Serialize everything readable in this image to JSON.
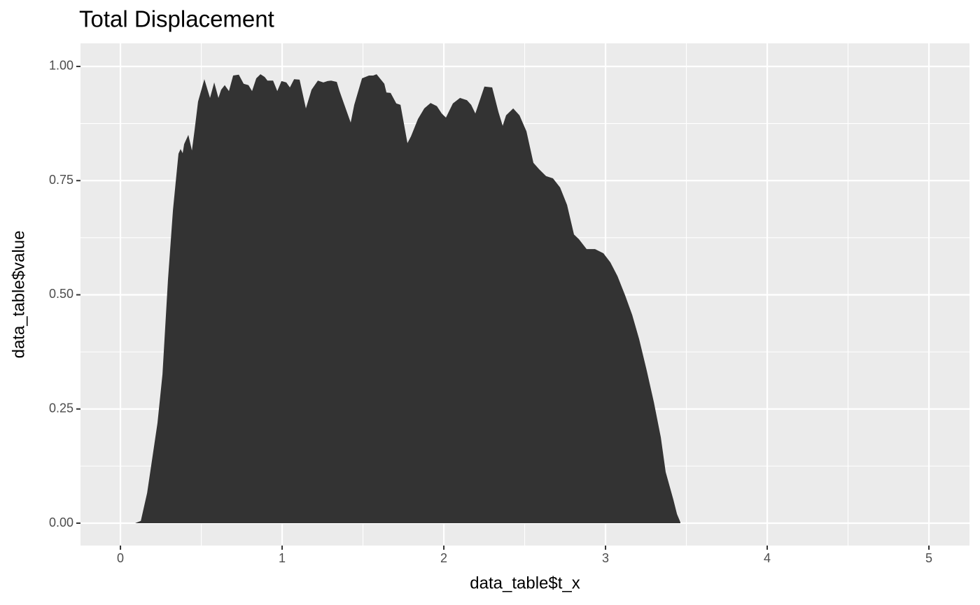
{
  "chart_data": {
    "type": "area",
    "title": "Total Displacement",
    "x_label": "data_table$t_x",
    "y_label": "data_table$value",
    "x": [
      0.091,
      0.126,
      0.165,
      0.229,
      0.26,
      0.294,
      0.325,
      0.359,
      0.372,
      0.385,
      0.394,
      0.42,
      0.442,
      0.459,
      0.48,
      0.519,
      0.554,
      0.58,
      0.606,
      0.623,
      0.645,
      0.671,
      0.697,
      0.732,
      0.762,
      0.792,
      0.814,
      0.84,
      0.866,
      0.892,
      0.909,
      0.944,
      0.97,
      0.996,
      1.026,
      1.048,
      1.074,
      1.108,
      1.147,
      1.182,
      1.221,
      1.255,
      1.281,
      1.303,
      1.338,
      1.355,
      1.385,
      1.424,
      1.446,
      1.494,
      1.537,
      1.563,
      1.584,
      1.632,
      1.645,
      1.671,
      1.706,
      1.732,
      1.775,
      1.797,
      1.84,
      1.879,
      1.918,
      1.957,
      1.987,
      2.013,
      2.056,
      2.1,
      2.143,
      2.169,
      2.195,
      2.251,
      2.299,
      2.338,
      2.364,
      2.385,
      2.429,
      2.468,
      2.511,
      2.554,
      2.589,
      2.632,
      2.675,
      2.719,
      2.762,
      2.805,
      2.835,
      2.883,
      2.935,
      2.987,
      3.03,
      3.074,
      3.121,
      3.165,
      3.208,
      3.255,
      3.299,
      3.342,
      3.372,
      3.42,
      3.442,
      3.463
    ],
    "values": [
      0,
      0.005,
      0.066,
      0.219,
      0.326,
      0.533,
      0.686,
      0.809,
      0.819,
      0.81,
      0.83,
      0.85,
      0.816,
      0.862,
      0.923,
      0.972,
      0.931,
      0.965,
      0.931,
      0.949,
      0.959,
      0.946,
      0.98,
      0.982,
      0.962,
      0.959,
      0.946,
      0.974,
      0.983,
      0.977,
      0.969,
      0.969,
      0.946,
      0.968,
      0.965,
      0.954,
      0.972,
      0.971,
      0.908,
      0.949,
      0.969,
      0.965,
      0.968,
      0.969,
      0.966,
      0.946,
      0.916,
      0.877,
      0.916,
      0.974,
      0.98,
      0.98,
      0.983,
      0.962,
      0.943,
      0.942,
      0.919,
      0.916,
      0.832,
      0.847,
      0.885,
      0.908,
      0.92,
      0.913,
      0.897,
      0.888,
      0.919,
      0.931,
      0.926,
      0.916,
      0.897,
      0.956,
      0.954,
      0.9,
      0.87,
      0.893,
      0.908,
      0.893,
      0.858,
      0.789,
      0.775,
      0.76,
      0.755,
      0.735,
      0.697,
      0.632,
      0.622,
      0.6,
      0.6,
      0.591,
      0.571,
      0.541,
      0.499,
      0.456,
      0.403,
      0.334,
      0.265,
      0.188,
      0.112,
      0.051,
      0.02,
      0.002
    ],
    "color": "#333333",
    "xlim": [
      -0.247,
      5.251
    ],
    "ylim": [
      -0.049,
      1.0505
    ],
    "xticks": [
      0,
      1,
      2,
      3,
      4,
      5
    ],
    "yticks": [
      {
        "value": 0,
        "label": "0.00"
      },
      {
        "value": 0.25,
        "label": "0.25"
      },
      {
        "value": 0.5,
        "label": "0.50"
      },
      {
        "value": 0.75,
        "label": "0.75"
      },
      {
        "value": 1,
        "label": "1.00"
      }
    ],
    "grid": true
  }
}
